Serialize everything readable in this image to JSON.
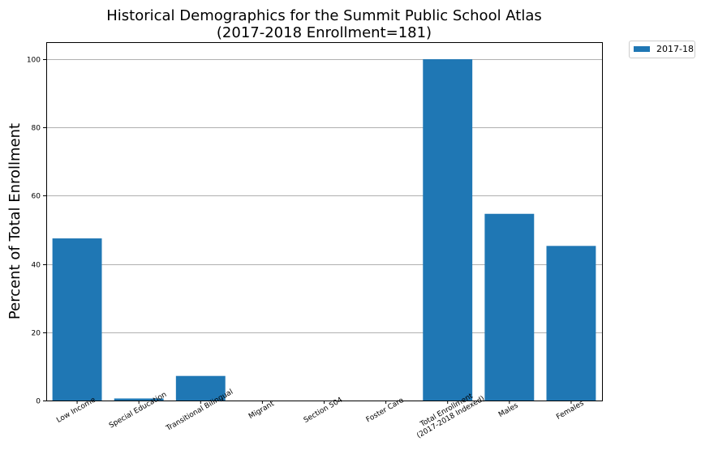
{
  "chart_data": {
    "type": "bar",
    "title": [
      "Historical Demographics for the Summit Public School Atlas",
      "(2017-2018 Enrollment=181)"
    ],
    "xlabel": "",
    "ylabel": "Percent of Total Enrollment",
    "categories": [
      [
        "Low Income"
      ],
      [
        "Special Education"
      ],
      [
        "Transitional Bilingual"
      ],
      [
        "Migrant"
      ],
      [
        "Section 504"
      ],
      [
        "Foster Care"
      ],
      [
        "Total Enrollment",
        "(2017-2018 Indexed)"
      ],
      [
        "Males"
      ],
      [
        "Females"
      ]
    ],
    "series": [
      {
        "name": "2017-18",
        "color": "#1f77b4",
        "values": [
          47.5,
          0.6,
          7.2,
          0.0,
          0.0,
          0.0,
          100.0,
          54.7,
          45.3
        ]
      }
    ],
    "ylim": [
      0,
      105
    ],
    "yticks": [
      0,
      20,
      40,
      60,
      80,
      100
    ],
    "grid": "horizontal",
    "legend_position": "outside-top-right"
  }
}
